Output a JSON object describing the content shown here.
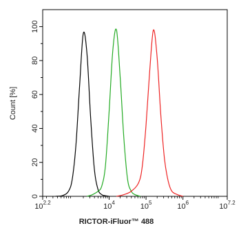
{
  "chart_data": {
    "type": "line",
    "xlabel": "RICTOR-iFluor™ 488",
    "ylabel": "Count [%]",
    "x_scale": "log10",
    "xlim": [
      2.2,
      7.2
    ],
    "ylim": [
      0,
      110
    ],
    "grid": false,
    "x_ticks": [
      {
        "value": 2.2,
        "base": "10",
        "exp": "2.2"
      },
      {
        "value": 4,
        "base": "10",
        "exp": "4"
      },
      {
        "value": 5,
        "base": "10",
        "exp": "5"
      },
      {
        "value": 6,
        "base": "10",
        "exp": "6"
      },
      {
        "value": 7.2,
        "base": "10",
        "exp": "7.2"
      }
    ],
    "y_ticks": [
      "0",
      "20",
      "40",
      "60",
      "80",
      "100"
    ],
    "series": [
      {
        "color": "#000000",
        "x": [
          2.55,
          2.75,
          2.9,
          3.0,
          3.1,
          3.2,
          3.3,
          3.4,
          3.5,
          3.6,
          3.7,
          3.8,
          3.9,
          4.0
        ],
        "values": [
          0,
          0.5,
          3,
          10,
          30,
          65,
          96,
          84,
          46,
          16,
          4,
          1,
          0.3,
          0
        ]
      },
      {
        "color": "#22aa22",
        "x": [
          3.4,
          3.55,
          3.7,
          3.8,
          3.9,
          4.0,
          4.1,
          4.2,
          4.3,
          4.4,
          4.5,
          4.6,
          4.7,
          4.85
        ],
        "values": [
          0,
          1,
          3,
          6,
          18,
          50,
          86,
          98,
          70,
          34,
          10,
          3,
          1,
          0
        ]
      },
      {
        "color": "#ee2222",
        "x": [
          4.2,
          4.4,
          4.6,
          4.8,
          4.9,
          5.0,
          5.1,
          5.2,
          5.3,
          5.4,
          5.5,
          5.6,
          5.7,
          5.85,
          6.0
        ],
        "values": [
          0,
          1,
          3,
          8,
          18,
          42,
          74,
          98,
          82,
          48,
          22,
          9,
          3,
          1,
          0
        ]
      }
    ]
  }
}
